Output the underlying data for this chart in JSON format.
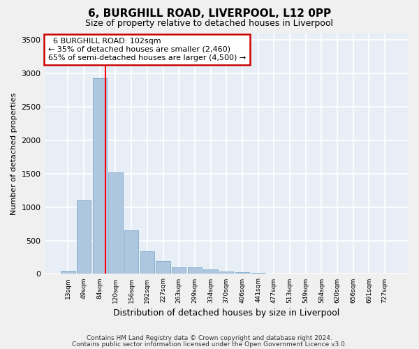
{
  "title1": "6, BURGHILL ROAD, LIVERPOOL, L12 0PP",
  "title2": "Size of property relative to detached houses in Liverpool",
  "xlabel": "Distribution of detached houses by size in Liverpool",
  "ylabel": "Number of detached properties",
  "bar_labels": [
    "13sqm",
    "49sqm",
    "84sqm",
    "120sqm",
    "156sqm",
    "192sqm",
    "227sqm",
    "263sqm",
    "299sqm",
    "334sqm",
    "370sqm",
    "406sqm",
    "441sqm",
    "477sqm",
    "513sqm",
    "549sqm",
    "584sqm",
    "620sqm",
    "656sqm",
    "691sqm",
    "727sqm"
  ],
  "bar_heights": [
    50,
    1100,
    2930,
    1520,
    650,
    340,
    190,
    95,
    95,
    65,
    40,
    30,
    20,
    5,
    5,
    3,
    2,
    0,
    0,
    0,
    0
  ],
  "bar_color": "#aec6df",
  "bar_edge_color": "#7aaac8",
  "bg_color": "#e8eef5",
  "grid_color": "#ffffff",
  "red_line_x": 2.35,
  "annotation_text": "  6 BURGHILL ROAD: 102sqm  \n← 35% of detached houses are smaller (2,460)\n65% of semi-detached houses are larger (4,500) →",
  "annotation_box_color": "#ffffff",
  "annotation_box_edge": "#cc0000",
  "ylim": [
    0,
    3600
  ],
  "yticks": [
    0,
    500,
    1000,
    1500,
    2000,
    2500,
    3000,
    3500
  ],
  "footer1": "Contains HM Land Registry data © Crown copyright and database right 2024.",
  "footer2": "Contains public sector information licensed under the Open Government Licence v3.0."
}
